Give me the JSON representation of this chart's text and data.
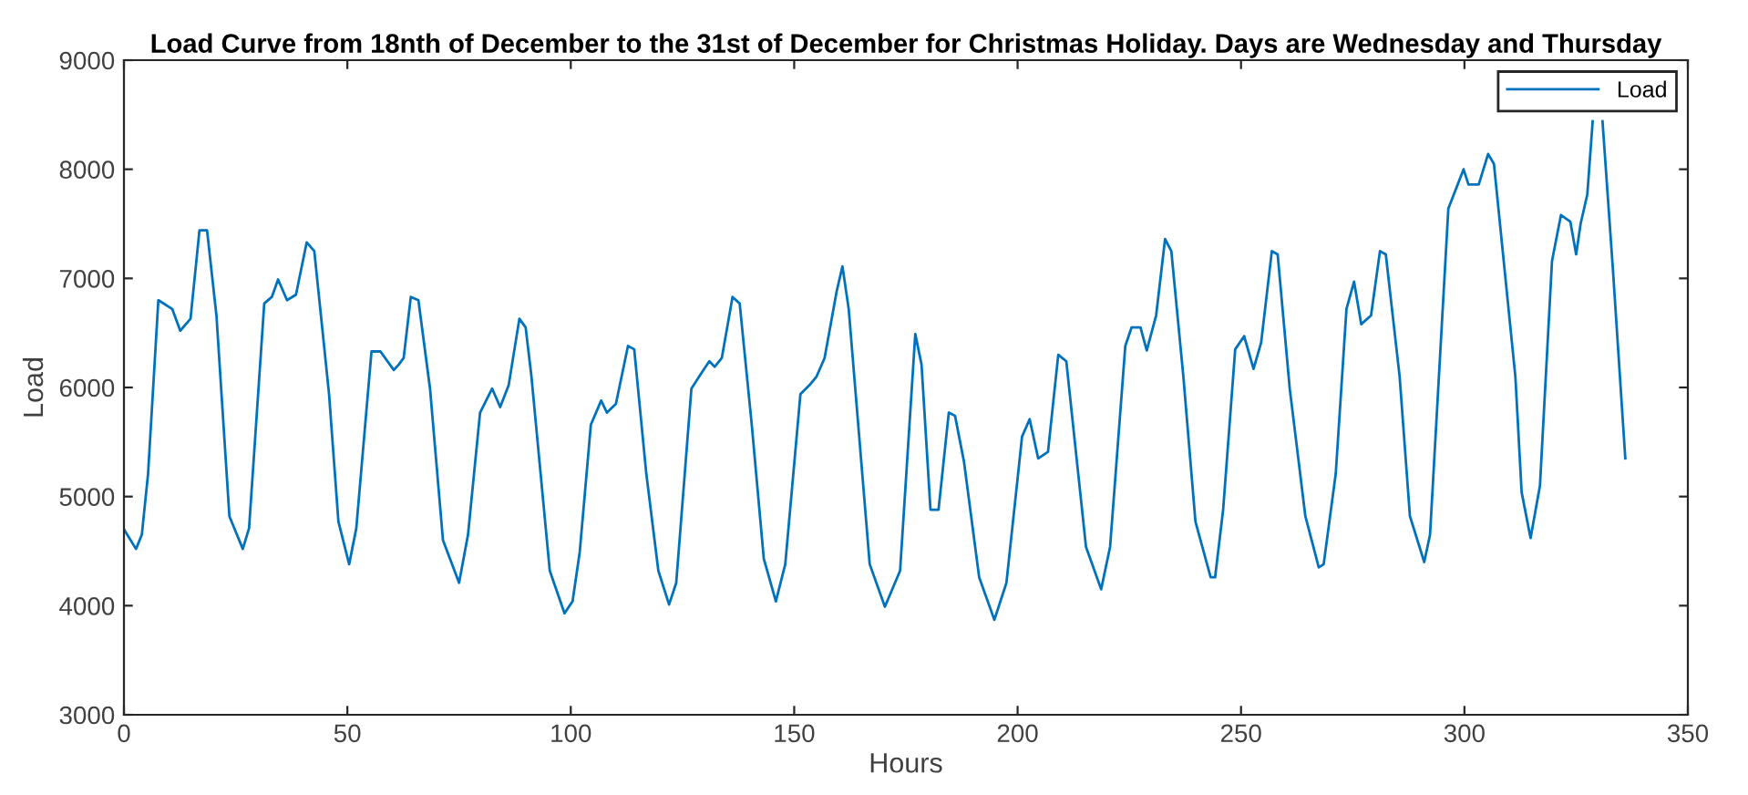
{
  "chart_data": {
    "type": "line",
    "title": "Load Curve from 18nth of December to the 31st of December for Christmas Holiday. Days are Wednesday and Thursday",
    "xlabel": "Hours",
    "ylabel": "Load",
    "xlim": [
      0,
      350
    ],
    "ylim": [
      3000,
      9000
    ],
    "xticks": [
      0,
      50,
      100,
      150,
      200,
      250,
      300,
      350
    ],
    "yticks": [
      3000,
      4000,
      5000,
      6000,
      7000,
      8000,
      9000
    ],
    "grid": false,
    "legend": "top right",
    "line_style": "solid",
    "marker": "none",
    "series": [
      {
        "name": "Load",
        "color": "#0072bd",
        "x": [
          0,
          2.7,
          4,
          5.4,
          7.7,
          10.8,
          12.6,
          14.9,
          16.9,
          18.6,
          20.7,
          23.6,
          26.6,
          28,
          31.4,
          33.1,
          34.5,
          36.5,
          38.5,
          40.9,
          42.6,
          45.9,
          48,
          50.4,
          52,
          55.4,
          57.4,
          60.4,
          61.5,
          62.6,
          64.2,
          65.9,
          68.5,
          71.4,
          75,
          77,
          79.7,
          82.4,
          84.2,
          86.1,
          88.5,
          89.9,
          91.2,
          95.3,
          98.6,
          100.4,
          102,
          104.5,
          106.8,
          108.1,
          110.1,
          112.8,
          114.2,
          116.9,
          119.6,
          122,
          123.6,
          127,
          129.7,
          131,
          132.2,
          133.8,
          136.2,
          137.8,
          140.5,
          143.2,
          145.9,
          148,
          151.4,
          153.4,
          155,
          156.8,
          159.5,
          160.8,
          162.2,
          166.9,
          170.3,
          173.7,
          177.1,
          178.5,
          180.5,
          182.3,
          184.6,
          186,
          188,
          191.4,
          194.8,
          197.5,
          201,
          202.7,
          204.6,
          206.8,
          209.1,
          210.9,
          215.3,
          218.7,
          220.7,
          224.1,
          225.5,
          227.5,
          228.9,
          231,
          233,
          234.4,
          237.1,
          239.8,
          243.2,
          244.2,
          246,
          248.7,
          250.7,
          252.8,
          254.5,
          256.9,
          258.2,
          260.9,
          264.4,
          267.4,
          268.5,
          271.2,
          273.6,
          275.3,
          276.9,
          279.1,
          281.1,
          282.4,
          285.5,
          287.8,
          291,
          292.3,
          296.4,
          299.8,
          300.9,
          303.2,
          305.3,
          306.6,
          311.4,
          312.8,
          314.8,
          316.9,
          319.6,
          321.6,
          323.7,
          325,
          326,
          327.5,
          328.7,
          329.8,
          330.9,
          333.2,
          336
        ],
        "values": [
          4700,
          4520,
          4650,
          5210,
          6800,
          6720,
          6520,
          6630,
          7440,
          7440,
          6660,
          4820,
          4520,
          4710,
          6770,
          6830,
          6990,
          6800,
          6850,
          7330,
          7250,
          5940,
          4770,
          4380,
          4710,
          6330,
          6330,
          6160,
          6210,
          6270,
          6830,
          6800,
          5990,
          4600,
          4210,
          4650,
          5770,
          5990,
          5820,
          6020,
          6630,
          6550,
          6100,
          4320,
          3930,
          4040,
          4490,
          5660,
          5880,
          5770,
          5850,
          6380,
          6350,
          5210,
          4320,
          4010,
          4210,
          5990,
          6160,
          6240,
          6190,
          6270,
          6830,
          6770,
          5660,
          4430,
          4040,
          4380,
          5940,
          6020,
          6100,
          6270,
          6880,
          7110,
          6720,
          4380,
          3990,
          4320,
          6490,
          6210,
          4880,
          4880,
          5770,
          5740,
          5320,
          4260,
          3870,
          4210,
          5550,
          5710,
          5350,
          5410,
          6300,
          6240,
          4540,
          4150,
          4540,
          6380,
          6550,
          6550,
          6340,
          6660,
          7360,
          7250,
          6100,
          4770,
          4260,
          4260,
          4880,
          6350,
          6470,
          6170,
          6410,
          7250,
          7220,
          5990,
          4820,
          4350,
          4380,
          5210,
          6720,
          6970,
          6580,
          6660,
          7250,
          7220,
          6100,
          4820,
          4400,
          4650,
          7640,
          8000,
          7860,
          7860,
          8140,
          8050,
          6100,
          5040,
          4620,
          5100,
          7160,
          7580,
          7520,
          7220,
          7500,
          7770,
          8440,
          null,
          8440,
          7100,
          5350
        ]
      }
    ]
  }
}
